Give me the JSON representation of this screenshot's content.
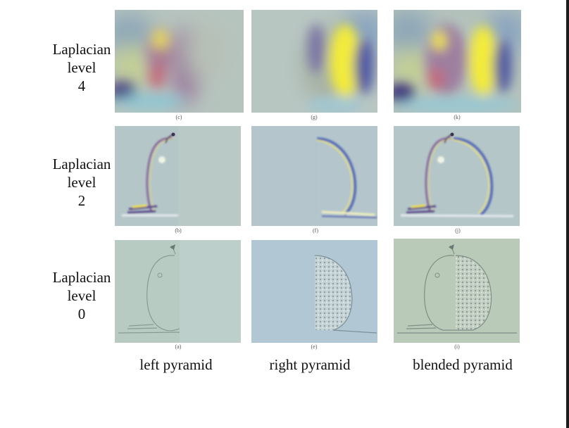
{
  "rows": [
    {
      "label": [
        "Laplacian",
        "level",
        "4"
      ]
    },
    {
      "label": [
        "Laplacian",
        "level",
        "2"
      ]
    },
    {
      "label": [
        "Laplacian",
        "level",
        "0"
      ]
    }
  ],
  "panels": {
    "r0c0": "(c)",
    "r0c1": "(g)",
    "r0c2": "(k)",
    "r1c0": "(b)",
    "r1c1": "(f)",
    "r1c2": "(j)",
    "r2c0": "(a)",
    "r2c1": "(e)",
    "r2c2": "(i)"
  },
  "columns": [
    "left pyramid",
    "right pyramid",
    "blended pyramid"
  ]
}
